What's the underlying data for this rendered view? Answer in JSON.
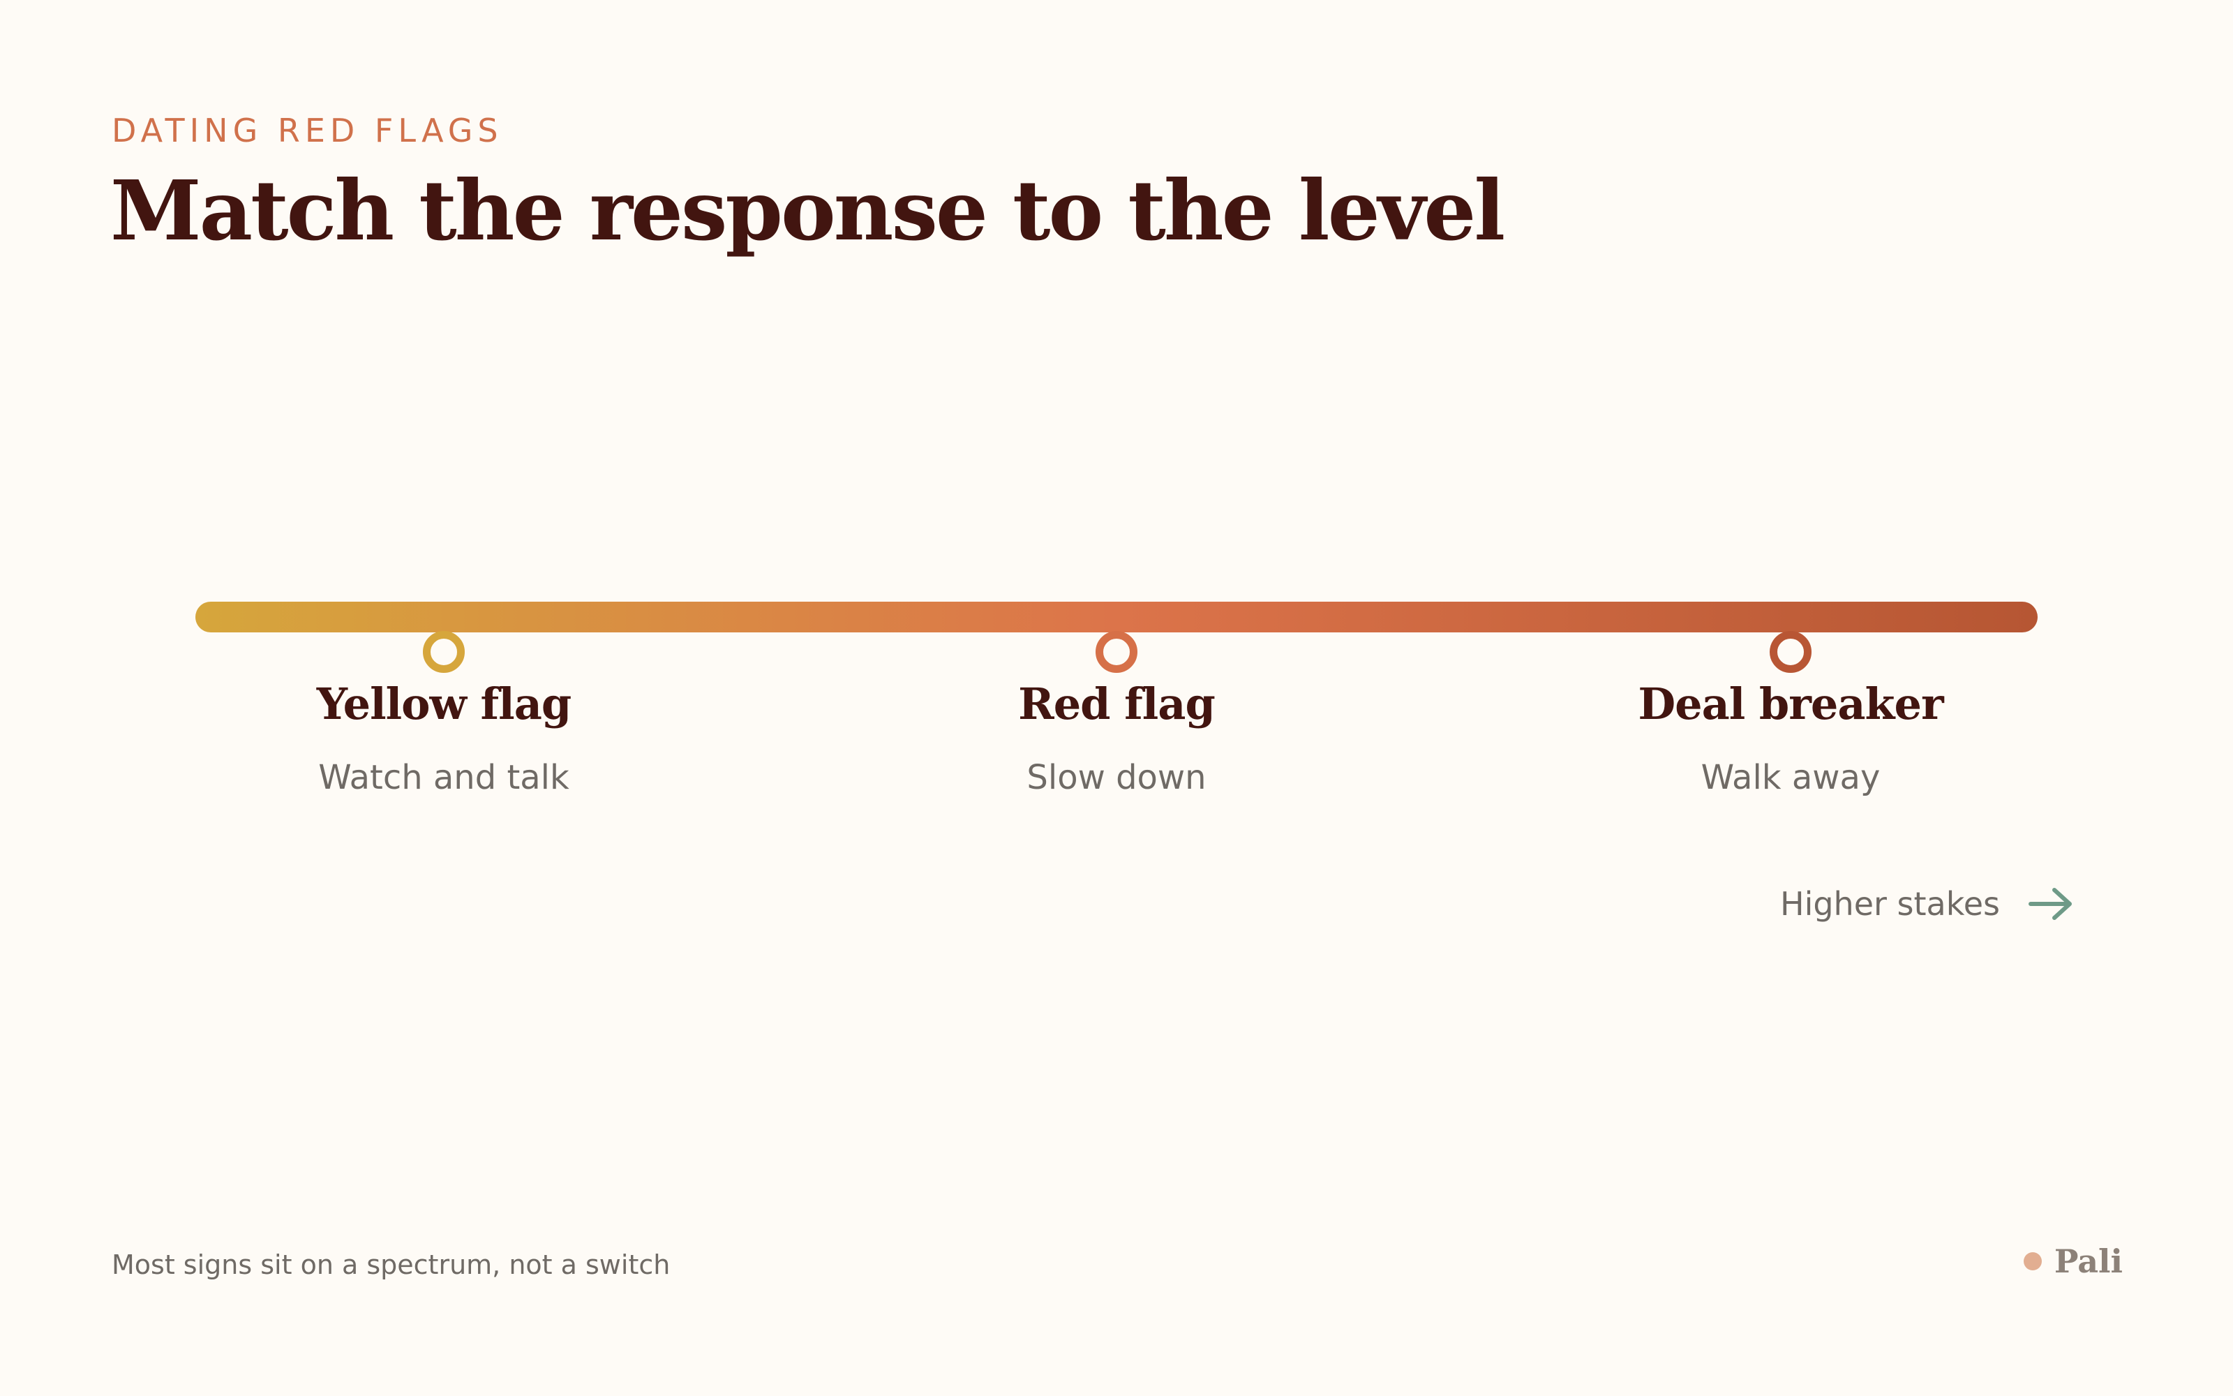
{
  "header": {
    "eyebrow": "DATING RED FLAGS",
    "title": "Match the response to the level"
  },
  "spectrum": {
    "colors": {
      "start": "#D6A63C",
      "middle": "#DC744A",
      "end": "#B65633"
    },
    "levels": [
      {
        "name": "Yellow flag",
        "action": "Watch and talk",
        "color": "#D6A63C"
      },
      {
        "name": "Red flag",
        "action": "Slow down",
        "color": "#D67048"
      },
      {
        "name": "Deal breaker",
        "action": "Walk away",
        "color": "#B85634"
      }
    ],
    "direction_label": "Higher stakes",
    "direction_icon": "arrow-right-icon",
    "direction_color": "#6E9A87"
  },
  "footer": {
    "note": "Most signs sit on a spectrum, not a switch",
    "brand_name": "Pali",
    "brand_dot_color": "#E2AE91"
  }
}
